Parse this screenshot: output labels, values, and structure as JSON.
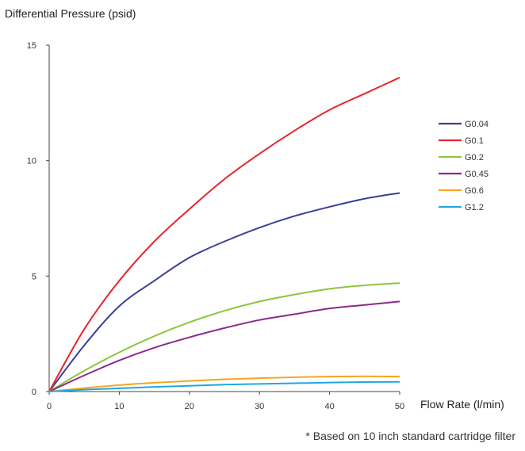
{
  "chart_data": {
    "type": "line",
    "title": "",
    "ylabel": "Differential Pressure (psid)",
    "xlabel": "Flow Rate (l/min)",
    "xlim": [
      0,
      50
    ],
    "ylim": [
      0,
      15
    ],
    "x_ticks": [
      "0",
      "10",
      "20",
      "30",
      "40",
      "50"
    ],
    "y_ticks": [
      "0",
      "5",
      "10",
      "15"
    ],
    "grid": false,
    "legend_position": "right",
    "x": [
      0,
      5,
      10,
      15,
      20,
      25,
      30,
      35,
      40,
      45,
      50
    ],
    "series": [
      {
        "name": "G0.04",
        "color": "#3b3f96",
        "values": [
          0,
          2.0,
          3.7,
          4.8,
          5.8,
          6.5,
          7.1,
          7.6,
          8.0,
          8.35,
          8.6
        ]
      },
      {
        "name": "G0.1",
        "color": "#e8252b",
        "values": [
          0,
          2.7,
          4.8,
          6.5,
          7.9,
          9.2,
          10.3,
          11.3,
          12.2,
          12.9,
          13.6
        ]
      },
      {
        "name": "G0.2",
        "color": "#8cc63f",
        "values": [
          0,
          0.9,
          1.7,
          2.4,
          3.0,
          3.5,
          3.9,
          4.2,
          4.45,
          4.6,
          4.7
        ]
      },
      {
        "name": "G0.45",
        "color": "#8b2a8c",
        "values": [
          0,
          0.7,
          1.35,
          1.9,
          2.35,
          2.75,
          3.1,
          3.35,
          3.6,
          3.75,
          3.9
        ]
      },
      {
        "name": "G0.6",
        "color": "#f5a623",
        "values": [
          0,
          0.15,
          0.28,
          0.38,
          0.46,
          0.53,
          0.58,
          0.62,
          0.65,
          0.66,
          0.65
        ]
      },
      {
        "name": "G1.2",
        "color": "#1fa8e0",
        "values": [
          0,
          0.08,
          0.14,
          0.2,
          0.25,
          0.3,
          0.33,
          0.36,
          0.39,
          0.41,
          0.42
        ]
      }
    ]
  },
  "footnote": "* Based on 10 inch standard cartridge filter"
}
